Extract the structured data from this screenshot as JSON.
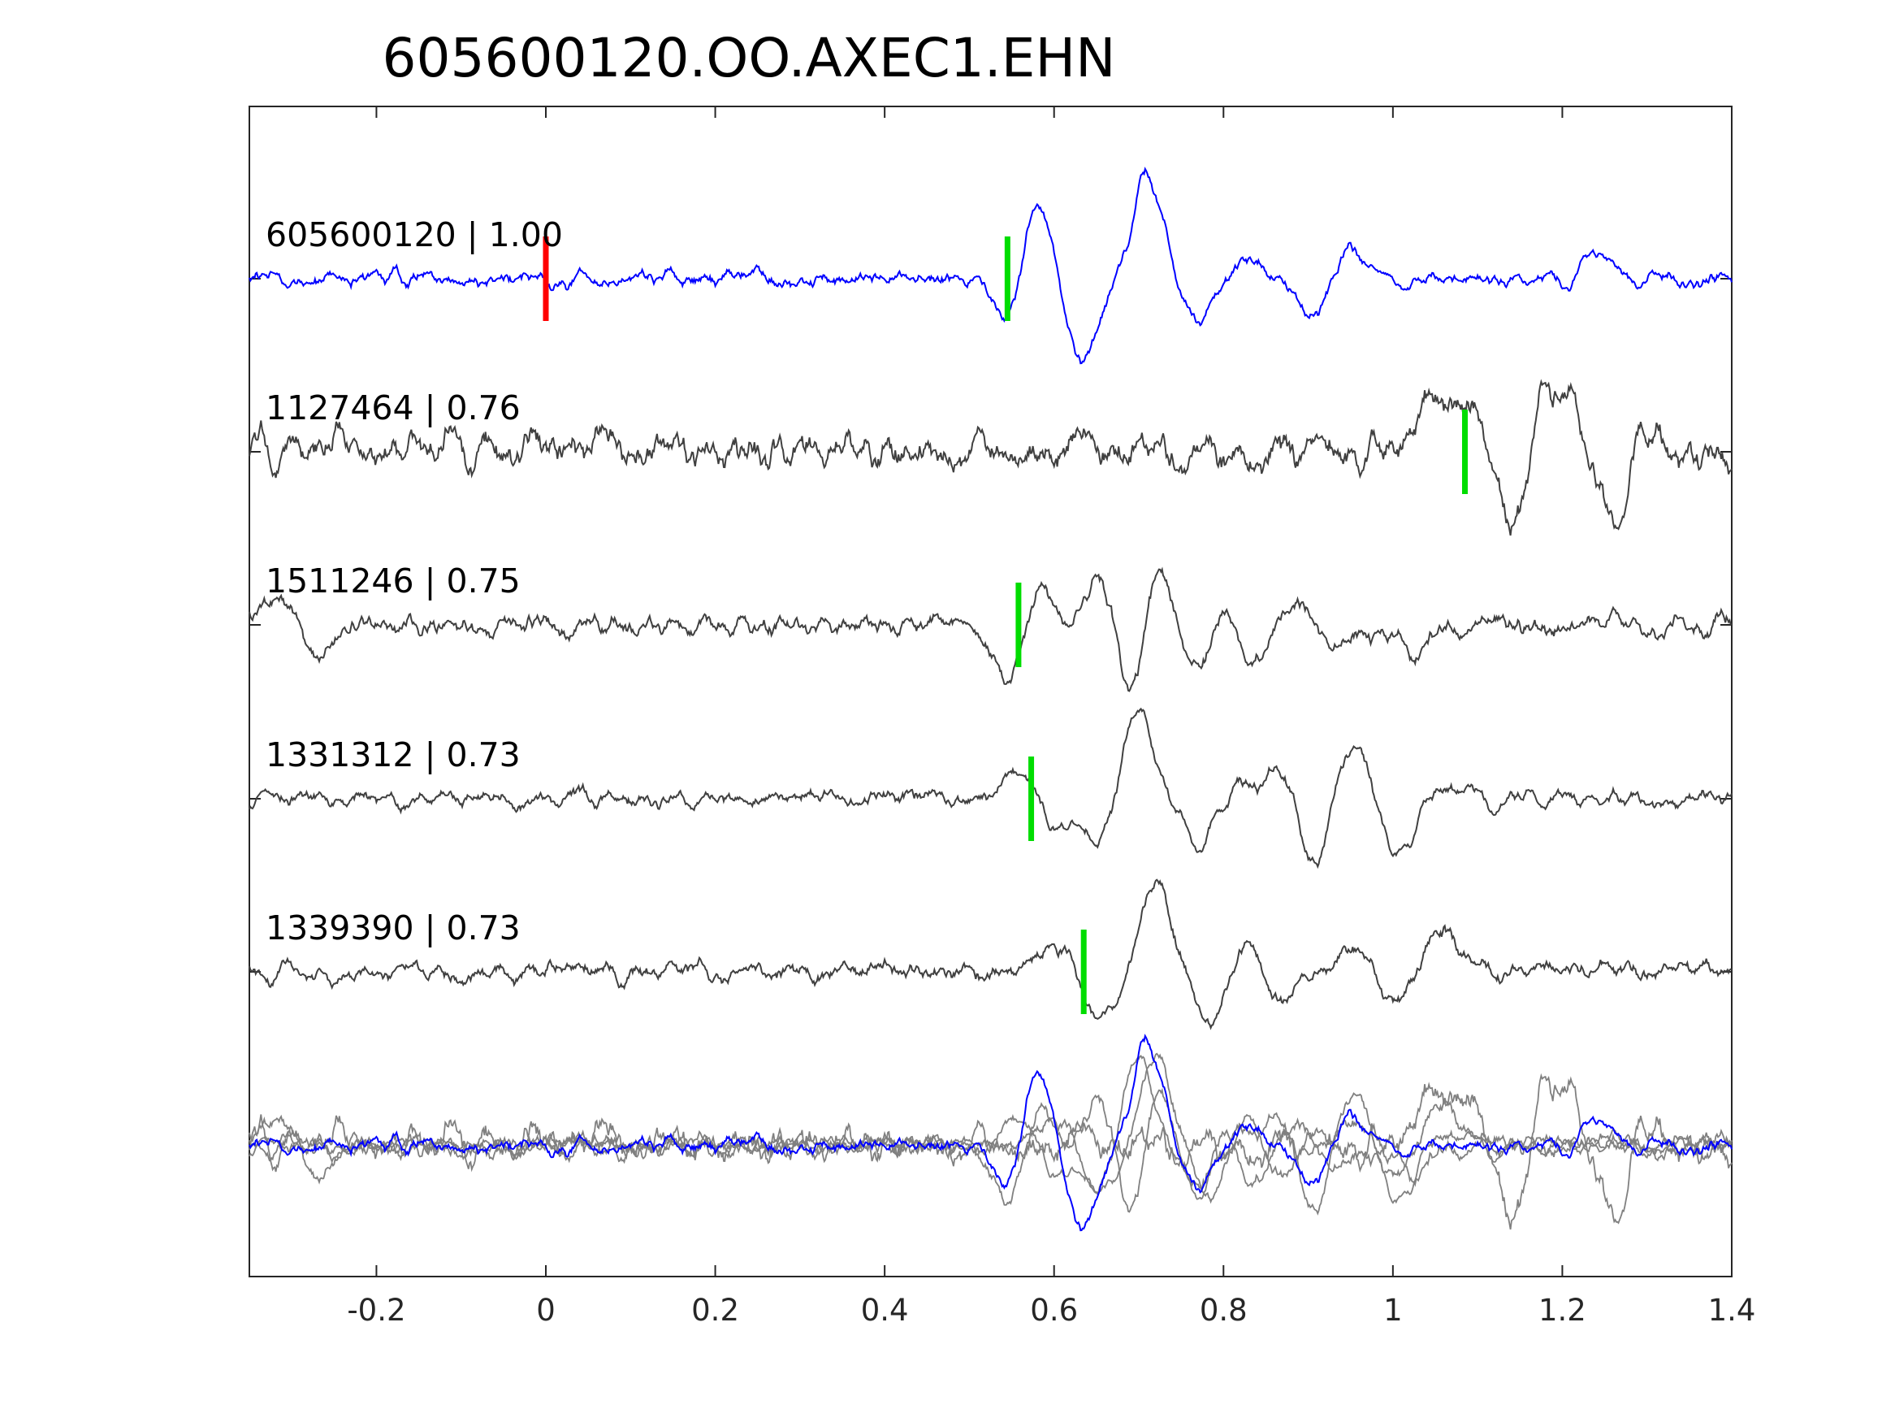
{
  "chart_data": {
    "type": "line",
    "title": "605600120.OO.AXEC1.EHN",
    "xlabel": "",
    "ylabel": "",
    "xlim": [
      -0.35,
      1.4
    ],
    "xticks": [
      -0.2,
      0,
      0.2,
      0.4,
      0.6,
      0.8,
      1,
      1.2,
      1.4
    ],
    "xtick_labels": [
      "-0.2",
      "0",
      "0.2",
      "0.4",
      "0.6",
      "0.8",
      "1",
      "1.2",
      "1.4"
    ],
    "grid": false,
    "legend": "none",
    "colors": {
      "template": "#0000ff",
      "neighbor": "#404040",
      "overlay_neighbor": "#808080",
      "reference_marker": "#ff0000",
      "pick_marker": "#00dd00",
      "axes": "#262626"
    },
    "traces": [
      {
        "label": "605600120 | 1.00",
        "color": "#0000ff",
        "reference_time": 0.0,
        "pick_time": 0.545,
        "noise_amp": 0.2,
        "seed": 11,
        "waveform": [
          {
            "t": 0.545,
            "a": -0.55
          },
          {
            "t": 0.58,
            "a": 0.9
          },
          {
            "t": 0.635,
            "a": -0.95
          },
          {
            "t": 0.71,
            "a": 1.25
          },
          {
            "t": 0.77,
            "a": -0.5
          },
          {
            "t": 0.825,
            "a": 0.3
          },
          {
            "t": 0.905,
            "a": -0.45
          },
          {
            "t": 0.95,
            "a": 0.32
          },
          {
            "t": 1.24,
            "a": 0.28
          }
        ]
      },
      {
        "label": "1127464 | 0.76",
        "color": "#404040",
        "pick_time": 1.085,
        "noise_amp": 0.45,
        "seed": 23,
        "waveform": [
          {
            "t": 1.045,
            "a": 0.55
          },
          {
            "t": 1.085,
            "a": 0.6
          },
          {
            "t": 1.14,
            "a": -0.9
          },
          {
            "t": 1.18,
            "a": 1.0
          },
          {
            "t": 1.215,
            "a": 0.45
          },
          {
            "t": 1.26,
            "a": -0.9
          },
          {
            "t": 1.3,
            "a": 0.35
          }
        ]
      },
      {
        "label": "1511246 | 0.75",
        "color": "#404040",
        "pick_time": 0.558,
        "noise_amp": 0.22,
        "seed": 37,
        "waveform": [
          {
            "t": -0.32,
            "a": 0.35
          },
          {
            "t": -0.27,
            "a": -0.4
          },
          {
            "t": 0.545,
            "a": -0.75
          },
          {
            "t": 0.585,
            "a": 0.6
          },
          {
            "t": 0.615,
            "a": -0.2
          },
          {
            "t": 0.655,
            "a": 0.7
          },
          {
            "t": 0.69,
            "a": -1.0
          },
          {
            "t": 0.72,
            "a": 0.8
          },
          {
            "t": 0.77,
            "a": -0.6
          },
          {
            "t": 0.8,
            "a": 0.35
          },
          {
            "t": 0.835,
            "a": -0.5
          },
          {
            "t": 0.885,
            "a": 0.28
          },
          {
            "t": 0.93,
            "a": -0.25
          },
          {
            "t": 1.02,
            "a": -0.28
          }
        ]
      },
      {
        "label": "1331312 | 0.73",
        "color": "#404040",
        "pick_time": 0.573,
        "noise_amp": 0.2,
        "seed": 41,
        "waveform": [
          {
            "t": 0.56,
            "a": 0.35
          },
          {
            "t": 0.6,
            "a": -0.35
          },
          {
            "t": 0.65,
            "a": -0.5
          },
          {
            "t": 0.7,
            "a": 1.1
          },
          {
            "t": 0.77,
            "a": -0.6
          },
          {
            "t": 0.82,
            "a": 0.2
          },
          {
            "t": 0.87,
            "a": 0.45
          },
          {
            "t": 0.905,
            "a": -0.8
          },
          {
            "t": 0.955,
            "a": 0.65
          },
          {
            "t": 1.005,
            "a": -0.75
          },
          {
            "t": 1.06,
            "a": 0.15
          }
        ]
      },
      {
        "label": "1339390 | 0.73",
        "color": "#404040",
        "pick_time": 0.635,
        "noise_amp": 0.2,
        "seed": 53,
        "waveform": [
          {
            "t": 0.6,
            "a": 0.4
          },
          {
            "t": 0.655,
            "a": -0.6
          },
          {
            "t": 0.72,
            "a": 1.1
          },
          {
            "t": 0.785,
            "a": -0.7
          },
          {
            "t": 0.83,
            "a": 0.4
          },
          {
            "t": 0.87,
            "a": -0.35
          },
          {
            "t": 0.96,
            "a": 0.25
          },
          {
            "t": 1.0,
            "a": -0.35
          },
          {
            "t": 1.06,
            "a": 0.5
          }
        ]
      }
    ]
  }
}
